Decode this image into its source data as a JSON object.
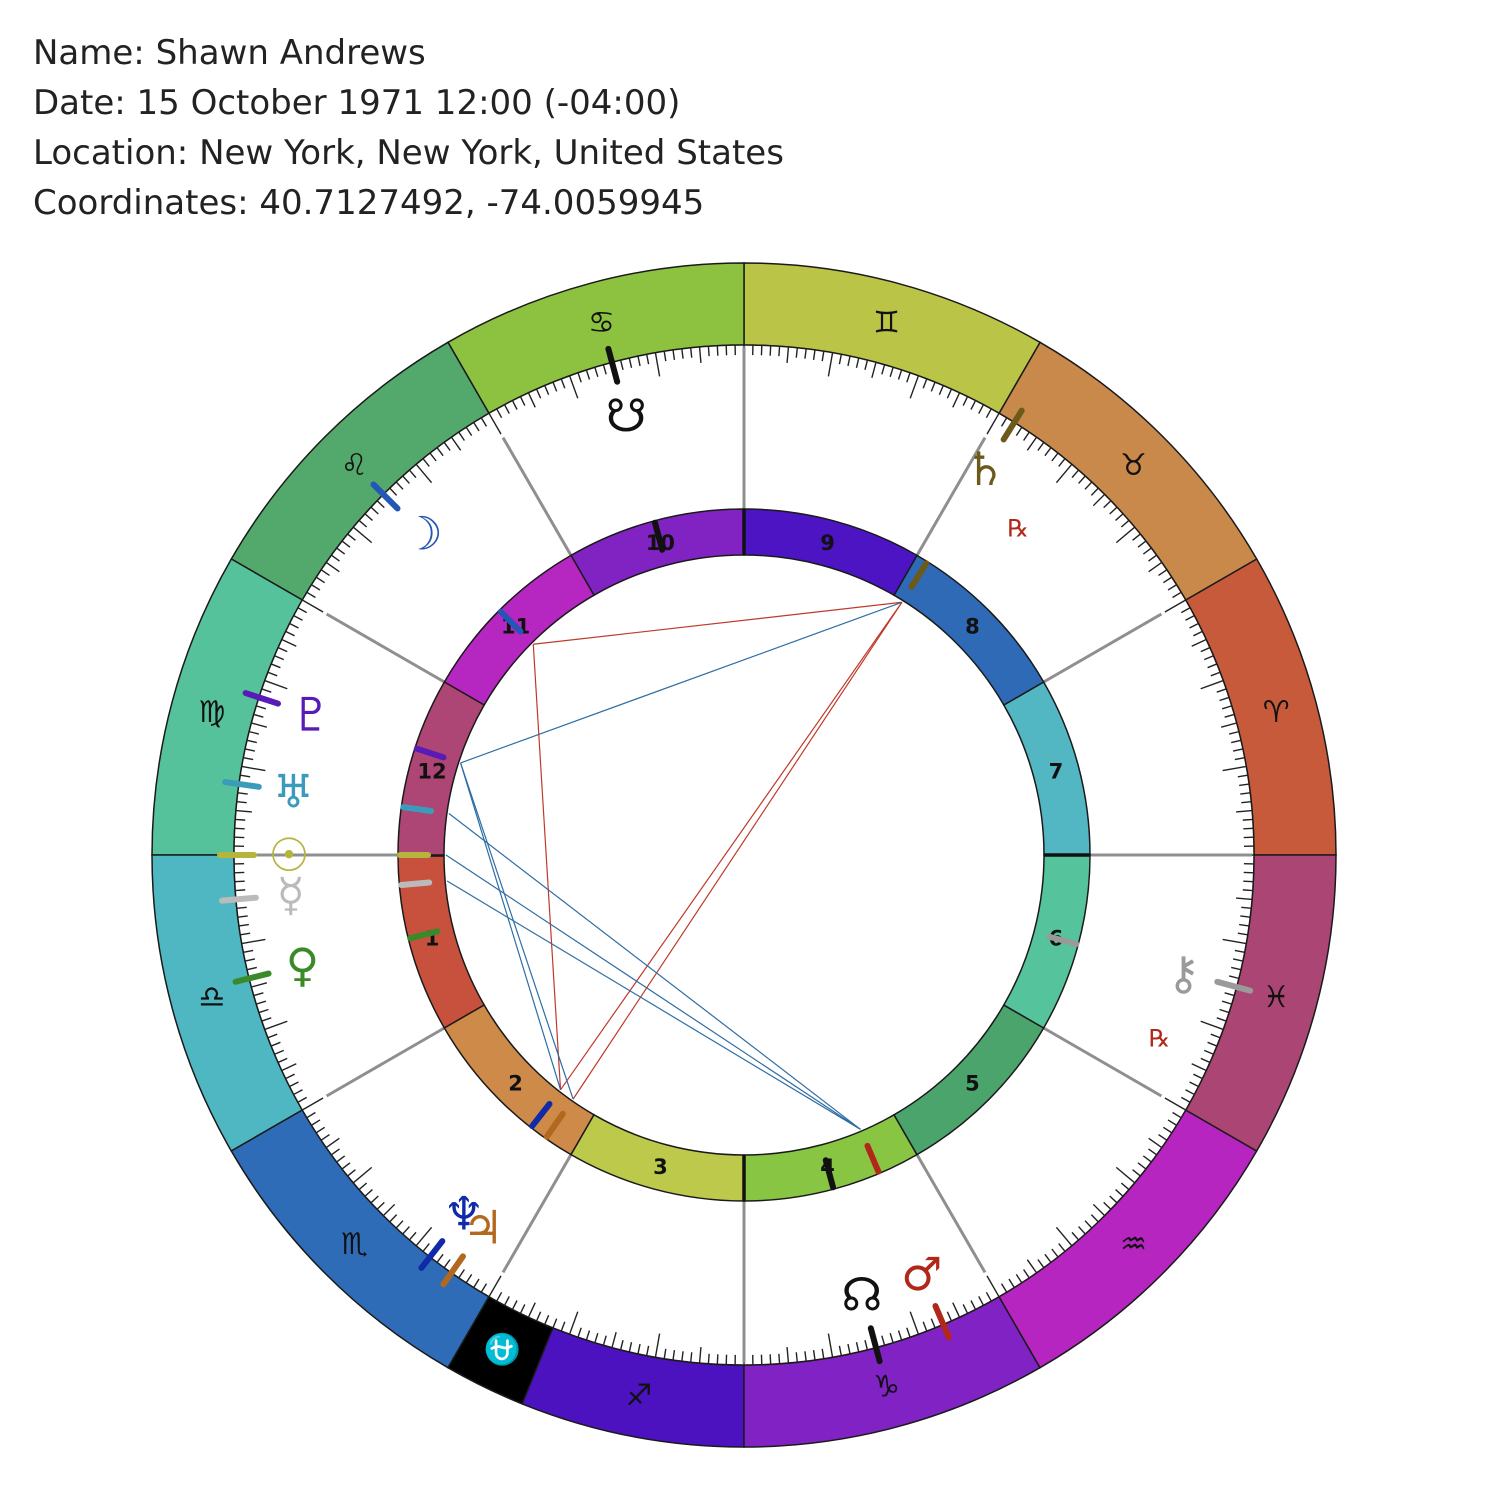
{
  "header": {
    "name_line": "Name: Shawn Andrews",
    "date_line": "Date: 15 October 1971 12:00 (-04:00)",
    "location_line": "Location: New York, New York, United States",
    "coordinates_line": "Coordinates: 40.7127492, -74.0059945"
  },
  "zodiac": [
    {
      "name": "aries",
      "symbol": "♈",
      "color": "#c85a3c",
      "start": 0
    },
    {
      "name": "taurus",
      "symbol": "♉",
      "color": "#c8894a",
      "start": 30
    },
    {
      "name": "gemini",
      "symbol": "♊",
      "color": "#bac447",
      "start": 60
    },
    {
      "name": "cancer",
      "symbol": "♋",
      "color": "#8cc240",
      "start": 90
    },
    {
      "name": "leo",
      "symbol": "♌",
      "color": "#53a96c",
      "start": 120
    },
    {
      "name": "virgo",
      "symbol": "♍",
      "color": "#55c29c",
      "start": 150
    },
    {
      "name": "libra",
      "symbol": "♎",
      "color": "#4fb7c2",
      "start": 180
    },
    {
      "name": "scorpio",
      "symbol": "♏",
      "color": "#2f6cb8",
      "start": 210
    },
    {
      "name": "ophiuchus",
      "symbol": "⛎",
      "color": "#000000",
      "start": 240
    },
    {
      "name": "sagittarius",
      "symbol": "♐",
      "color": "#4c12c0",
      "start": 248
    },
    {
      "name": "capricorn",
      "symbol": "♑",
      "color": "#8122c4",
      "start": 270
    },
    {
      "name": "aquarius",
      "symbol": "♒",
      "color": "#b625c0",
      "start": 300
    },
    {
      "name": "pisces",
      "symbol": "♓",
      "color": "#ab4674",
      "start": 330
    }
  ],
  "houses": [
    {
      "number": "1",
      "cusp": 180,
      "color": "#c8513d"
    },
    {
      "number": "2",
      "cusp": 210,
      "color": "#cd8a48"
    },
    {
      "number": "3",
      "cusp": 240,
      "color": "#bdc94a"
    },
    {
      "number": "4",
      "cusp": 270,
      "color": "#88c542"
    },
    {
      "number": "5",
      "cusp": 300,
      "color": "#4aa46b"
    },
    {
      "number": "6",
      "cusp": 330,
      "color": "#55c39b"
    },
    {
      "number": "7",
      "cusp": 0,
      "color": "#52b6c3"
    },
    {
      "number": "8",
      "cusp": 30,
      "color": "#2f6ab7"
    },
    {
      "number": "9",
      "cusp": 60,
      "color": "#4c14c3"
    },
    {
      "number": "10",
      "cusp": 90,
      "color": "#8122c3"
    },
    {
      "number": "11",
      "cusp": 120,
      "color": "#b626c0"
    },
    {
      "number": "12",
      "cusp": 150,
      "color": "#ad4575"
    }
  ],
  "planets": [
    {
      "name": "sun",
      "symbol": "☉",
      "color": "#b5b43c",
      "lon": 180,
      "retrograde": false
    },
    {
      "name": "moon",
      "symbol": "☽",
      "color": "#2456b5",
      "lon": 135,
      "retrograde": false
    },
    {
      "name": "mercury",
      "symbol": "☿",
      "color": "#bbbbbb",
      "lon": 185,
      "retrograde": false
    },
    {
      "name": "venus",
      "symbol": "♀",
      "color": "#3a8a2a",
      "lon": 194,
      "retrograde": false
    },
    {
      "name": "mars",
      "symbol": "♂",
      "color": "#b22818",
      "lon": 293,
      "retrograde": false
    },
    {
      "name": "jupiter",
      "symbol": "♃",
      "color": "#b2681e",
      "lon": 235,
      "retrograde": false
    },
    {
      "name": "saturn",
      "symbol": "♄",
      "color": "#6b5a1a",
      "lon": 58,
      "retrograde": true
    },
    {
      "name": "uranus",
      "symbol": "♅",
      "color": "#3a9cba",
      "lon": 172,
      "retrograde": false
    },
    {
      "name": "neptune",
      "symbol": "♆",
      "color": "#102aa8",
      "lon": 232,
      "retrograde": false
    },
    {
      "name": "pluto",
      "symbol": "♇",
      "color": "#5a1ab8",
      "lon": 162,
      "retrograde": false
    },
    {
      "name": "chiron",
      "symbol": "⚷",
      "color": "#9a9a9a",
      "lon": 345,
      "retrograde": true
    },
    {
      "name": "north-node",
      "symbol": "☊",
      "color": "#111111",
      "lon": 285,
      "retrograde": false
    },
    {
      "name": "south-node",
      "symbol": "☋",
      "color": "#111111",
      "lon": 105,
      "retrograde": false
    }
  ],
  "retrograde_label": "℞",
  "aspects": [
    {
      "from": "saturn",
      "to": "moon",
      "color": "#c0392b"
    },
    {
      "from": "saturn",
      "to": "pluto",
      "color": "#2e6da4"
    },
    {
      "from": "saturn",
      "to": "neptune",
      "color": "#c0392b"
    },
    {
      "from": "saturn",
      "to": "jupiter",
      "color": "#c0392b"
    },
    {
      "from": "moon",
      "to": "neptune",
      "color": "#c0392b"
    },
    {
      "from": "pluto",
      "to": "neptune",
      "color": "#2e6da4"
    },
    {
      "from": "pluto",
      "to": "jupiter",
      "color": "#2e6da4"
    },
    {
      "from": "uranus",
      "to": "mars",
      "color": "#2e6da4"
    },
    {
      "from": "sun",
      "to": "mars",
      "color": "#2e6da4"
    },
    {
      "from": "mercury",
      "to": "mars",
      "color": "#2e6da4"
    }
  ]
}
